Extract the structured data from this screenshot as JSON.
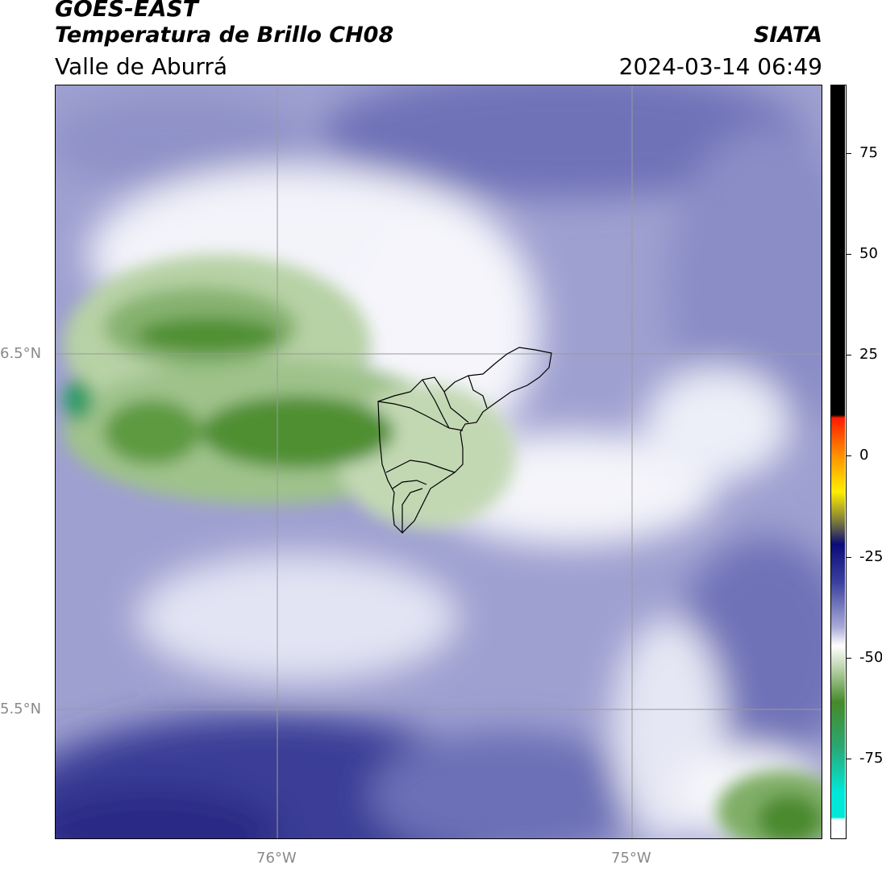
{
  "header": {
    "satellite": "GOES-EAST",
    "product": "Temperatura de Brillo CH08",
    "region": "Valle de Aburrá",
    "organization": "SIATA",
    "timestamp": "2024-03-14 06:49"
  },
  "map": {
    "lat_labels": [
      {
        "text": "6.5°N"
      },
      {
        "text": "5.5°N"
      }
    ],
    "lon_labels": [
      {
        "text": "76°W"
      },
      {
        "text": "75°W"
      }
    ],
    "gridlines": true
  },
  "colorbar": {
    "ticks": [
      "75",
      "50",
      "25",
      "0",
      "-25",
      "-50",
      "-75"
    ],
    "tick_values": [
      75,
      50,
      25,
      0,
      -25,
      -50,
      -75
    ],
    "range": [
      -95,
      92
    ],
    "colors": {
      "black": "#000000",
      "red": "#ff1a00",
      "orange": "#ff8c00",
      "yellow": "#ffee00",
      "navy": "#0b0b78",
      "blue_purple": "#3a3f9e",
      "lavender": "#a8aad6",
      "white": "#ffffff",
      "light_green": "#c7dbb9",
      "green": "#458a2a",
      "teal": "#2aa873",
      "cyan": "#00e8d8"
    }
  }
}
